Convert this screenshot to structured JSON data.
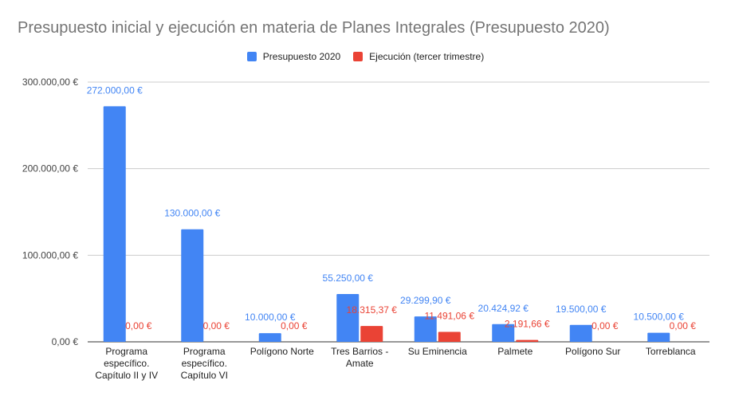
{
  "chart_data": {
    "type": "bar",
    "title": "Presupuesto inicial y ejecución en materia de Planes Integrales (Presupuesto 2020)",
    "xlabel": "",
    "ylabel": "",
    "ylim": [
      0,
      300000
    ],
    "yticks": [
      0,
      100000,
      200000,
      300000
    ],
    "ytick_labels": [
      "0,00 €",
      "100.000,00 €",
      "200.000,00 €",
      "300.000,00 €"
    ],
    "grid": true,
    "legend_position": "top",
    "categories": [
      [
        "Programa",
        "específico.",
        "Capítulo II y IV"
      ],
      [
        "Programa",
        "específico.",
        "Capítulo VI"
      ],
      [
        "Polígono Norte"
      ],
      [
        "Tres Barrios -",
        "Amate"
      ],
      [
        "Su Eminencia"
      ],
      [
        "Palmete"
      ],
      [
        "Polígono Sur"
      ],
      [
        "Torreblanca"
      ]
    ],
    "series": [
      {
        "name": "Presupuesto 2020",
        "color": "#4285f4",
        "values": [
          272000,
          130000,
          10000,
          55250,
          29299.9,
          20424.92,
          19500,
          10500
        ],
        "labels": [
          "272.000,00 €",
          "130.000,00 €",
          "10.000,00 €",
          "55.250,00 €",
          "29.299,90 €",
          "20.424,92 €",
          "19.500,00 €",
          "10.500,00 €"
        ]
      },
      {
        "name": "Ejecución (tercer trimestre)",
        "color": "#ea4335",
        "values": [
          0,
          0,
          0,
          18315.37,
          11491.06,
          2191.66,
          0,
          0
        ],
        "labels": [
          "0,00 €",
          "0,00 €",
          "0,00 €",
          "18.315,37 €",
          "11.491,06 €",
          "2.191,66 €",
          "0,00 €",
          "0,00 €"
        ]
      }
    ]
  }
}
